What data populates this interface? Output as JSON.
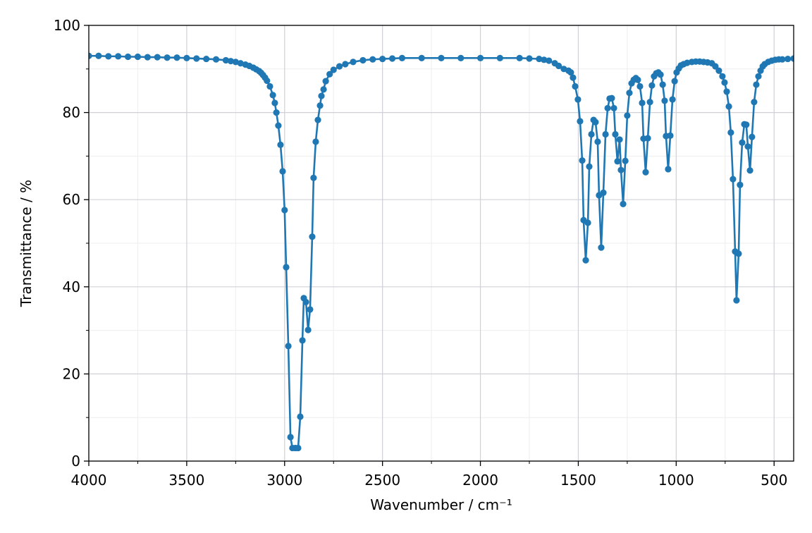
{
  "chart_data": {
    "type": "line",
    "xlabel": "Wavenumber / cm⁻¹",
    "ylabel": "Transmittance / %",
    "color": "#1f77b4",
    "markers": true,
    "grid": true,
    "xlim": [
      4000,
      400
    ],
    "ylim": [
      0,
      100
    ],
    "xticks": [
      4000,
      3500,
      3000,
      2500,
      2000,
      1500,
      1000,
      500
    ],
    "yticks": [
      0,
      20,
      40,
      60,
      80,
      100
    ],
    "xticks_minor": [
      3750,
      3250,
      2750,
      2250,
      1750,
      1250,
      750
    ],
    "yticks_minor": [
      10,
      30,
      50,
      70,
      90
    ],
    "x": [
      4000,
      3950,
      3900,
      3850,
      3800,
      3750,
      3700,
      3650,
      3600,
      3550,
      3500,
      3450,
      3400,
      3350,
      3300,
      3275,
      3250,
      3225,
      3200,
      3180,
      3160,
      3145,
      3130,
      3120,
      3110,
      3100,
      3090,
      3075,
      3060,
      3050,
      3042,
      3032,
      3021,
      3010,
      3000,
      2992,
      2981,
      2970,
      2960,
      2945,
      2931,
      2920,
      2909,
      2902,
      2891,
      2880,
      2870,
      2859,
      2852,
      2841,
      2830,
      2819,
      2812,
      2801,
      2790,
      2770,
      2750,
      2720,
      2690,
      2650,
      2600,
      2550,
      2500,
      2450,
      2400,
      2300,
      2200,
      2100,
      2000,
      1900,
      1800,
      1750,
      1700,
      1675,
      1650,
      1620,
      1600,
      1574,
      1550,
      1538,
      1527,
      1516,
      1502,
      1491,
      1480,
      1473,
      1462,
      1451,
      1444,
      1433,
      1422,
      1412,
      1401,
      1394,
      1383,
      1372,
      1361,
      1350,
      1340,
      1329,
      1318,
      1311,
      1300,
      1289,
      1282,
      1271,
      1260,
      1250,
      1239,
      1228,
      1217,
      1206,
      1196,
      1185,
      1174,
      1167,
      1156,
      1145,
      1134,
      1124,
      1113,
      1102,
      1091,
      1080,
      1069,
      1059,
      1052,
      1041,
      1030,
      1019,
      1008,
      998,
      987,
      976,
      962,
      944,
      920,
      900,
      880,
      860,
      840,
      818,
      800,
      782,
      764,
      753,
      742,
      731,
      721,
      710,
      699,
      692,
      681,
      674,
      663,
      652,
      642,
      634,
      623,
      613,
      602,
      591,
      580,
      569,
      558,
      548,
      530,
      512,
      494,
      476,
      458,
      430,
      400
    ],
    "values": [
      93,
      93,
      92.9,
      92.9,
      92.8,
      92.8,
      92.7,
      92.7,
      92.6,
      92.6,
      92.5,
      92.4,
      92.3,
      92.2,
      92,
      91.8,
      91.6,
      91.3,
      91,
      90.7,
      90.3,
      89.9,
      89.5,
      89.1,
      88.6,
      88,
      87.3,
      86,
      84,
      82.2,
      80,
      77,
      72.6,
      66.5,
      57.6,
      44.5,
      26.4,
      5.5,
      3,
      3,
      3,
      10.2,
      27.7,
      37.4,
      36.5,
      30.1,
      34.8,
      51.5,
      65,
      73.3,
      78.3,
      81.6,
      83.8,
      85.3,
      87.2,
      88.8,
      89.8,
      90.6,
      91.1,
      91.6,
      92,
      92.2,
      92.3,
      92.4,
      92.5,
      92.5,
      92.5,
      92.5,
      92.5,
      92.5,
      92.5,
      92.4,
      92.3,
      92.1,
      91.9,
      91.3,
      90.7,
      90,
      89.6,
      89.2,
      88,
      86,
      83,
      78,
      69,
      55.3,
      46.1,
      54.7,
      67.6,
      75,
      78.3,
      77.8,
      73.3,
      61,
      49,
      61.6,
      75,
      81,
      83.2,
      83.3,
      81,
      75,
      68.8,
      73.8,
      66.8,
      59,
      68.9,
      79.3,
      84.5,
      86.7,
      87.5,
      87.9,
      87.5,
      86,
      82.2,
      74,
      66.3,
      74.1,
      82.4,
      86.2,
      88.3,
      89,
      89.2,
      88.7,
      86.4,
      82.7,
      74.6,
      67,
      74.7,
      83,
      87.2,
      89.2,
      90.1,
      90.8,
      91.1,
      91.4,
      91.6,
      91.7,
      91.7,
      91.6,
      91.5,
      91.3,
      90.6,
      89.6,
      88.3,
      86.9,
      84.8,
      81.4,
      75.4,
      64.7,
      48.1,
      36.9,
      47.6,
      63.4,
      73.1,
      77.3,
      77.2,
      72.2,
      66.7,
      74.4,
      82.4,
      86.4,
      88.3,
      89.6,
      90.6,
      91.1,
      91.6,
      91.9,
      92.1,
      92.2,
      92.2,
      92.3,
      92.4
    ]
  }
}
